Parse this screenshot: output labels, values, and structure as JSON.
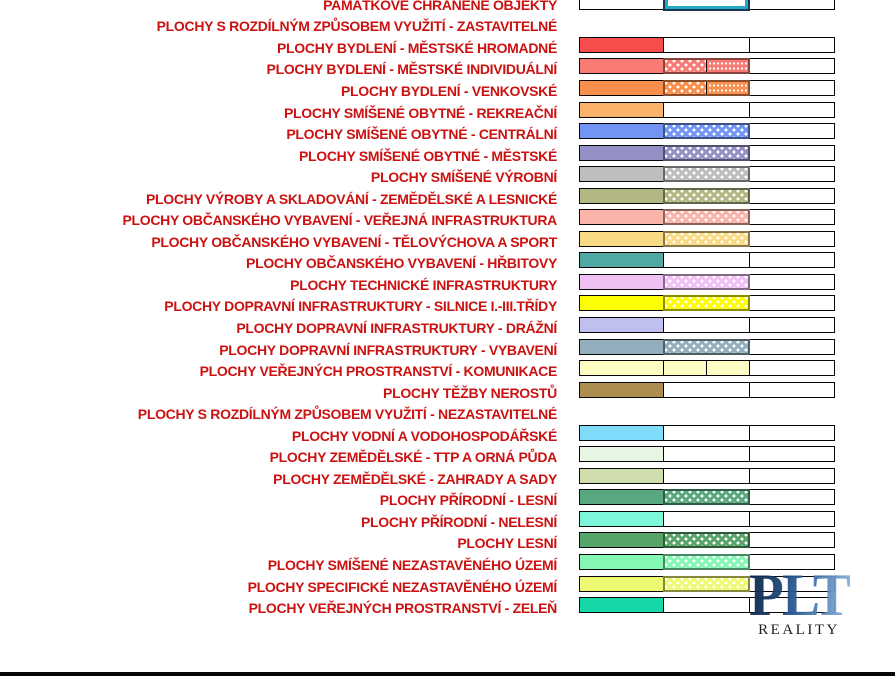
{
  "colors": {
    "label_red": "#cc1111",
    "cell_border": "#060606",
    "protected_outline_outer": "#17384e",
    "protected_outline_inner": "#20aac8"
  },
  "watermark": {
    "line1": "PLT",
    "line2": "REALITY"
  },
  "legend": {
    "rows": [
      {
        "label": "PAMÁTKOVĚ CHRÁNĚNÉ OBJEKTY",
        "type": "special"
      },
      {
        "label": "PLOCHY S ROZDÍLNÝM ZPŮSOBEM VYUŽITÍ - ZASTAVITELNÉ",
        "type": "header"
      },
      {
        "label": "PLOCHY BYDLENÍ - MĚSTSKÉ HROMADNÉ",
        "color": "#f94d4d",
        "col2": "plain"
      },
      {
        "label": "PLOCHY BYDLENÍ - MĚSTSKÉ INDIVIDUÁLNÍ",
        "color": "#f97c74",
        "col2": "split"
      },
      {
        "label": "PLOCHY BYDLENÍ - VENKOVSKÉ",
        "color": "#fa8f4d",
        "col2": "split"
      },
      {
        "label": "PLOCHY SMÍŠENÉ OBYTNÉ - REKREAČNÍ",
        "color": "#fbb26b",
        "col2": "plain"
      },
      {
        "label": "PLOCHY SMÍŠENÉ OBYTNÉ - CENTRÁLNÍ",
        "color": "#7295f5",
        "col2": "dots"
      },
      {
        "label": "PLOCHY SMÍŠENÉ OBYTNÉ - MĚSTSKÉ",
        "color": "#9490c5",
        "col2": "dots"
      },
      {
        "label": "PLOCHY SMÍŠENÉ VÝROBNÍ",
        "color": "#bebebe",
        "col2": "dots"
      },
      {
        "label": "PLOCHY VÝROBY A SKLADOVÁNÍ - ZEMĚDĚLSKÉ A LESNICKÉ",
        "color": "#b3b883",
        "col2": "dots"
      },
      {
        "label": "PLOCHY OBČANSKÉHO VYBAVENÍ - VEŘEJNÁ INFRASTRUKTURA",
        "color": "#fbb4a9",
        "col2": "dots"
      },
      {
        "label": "PLOCHY OBČANSKÉHO VYBAVENÍ - TĚLOVÝCHOVA A SPORT",
        "color": "#fada82",
        "col2": "dots"
      },
      {
        "label": "PLOCHY OBČANSKÉHO VYBAVENÍ - HŘBITOVY",
        "color": "#4fa8a2",
        "col2": "plain"
      },
      {
        "label": "PLOCHY TECHNICKÉ INFRASTRUKTURY",
        "color": "#f0c0f5",
        "col2": "dots"
      },
      {
        "label": "PLOCHY DOPRAVNÍ INFRASTRUKTURY - SILNICE I.-III.TŘÍDY",
        "color": "#fdfd04",
        "col2": "dots"
      },
      {
        "label": "PLOCHY DOPRAVNÍ INFRASTRUKTURY - DRÁŽNÍ",
        "color": "#c0c0f0",
        "col2": "plain"
      },
      {
        "label": "PLOCHY DOPRAVNÍ INFRASTRUKTURY - VYBAVENÍ",
        "color": "#93aebc",
        "col2": "dots"
      },
      {
        "label": "PLOCHY VEŘEJNÝCH PROSTRANSTVÍ - KOMUNIKACE",
        "color": "#fdfdc4",
        "col2": "split-plain"
      },
      {
        "label": "PLOCHY TĚŽBY NEROSTŮ",
        "color": "#ad8d50",
        "col2": "plain"
      },
      {
        "label": "PLOCHY S ROZDÍLNÝM ZPŮSOBEM VYUŽITÍ - NEZASTAVITELNÉ",
        "type": "header"
      },
      {
        "label": "PLOCHY VODNÍ A VODOHOSPODÁŘSKÉ",
        "color": "#7edbfa",
        "col2": "plain"
      },
      {
        "label": "PLOCHY ZEMĚDĚLSKÉ - TTP A ORNÁ PŮDA",
        "color": "#e7f7e3",
        "col2": "plain"
      },
      {
        "label": "PLOCHY ZEMĚDĚLSKÉ - ZAHRADY A SADY",
        "color": "#cfddad",
        "col2": "plain"
      },
      {
        "label": "PLOCHY PŘÍRODNÍ - LESNÍ",
        "color": "#57a77f",
        "col2": "dots"
      },
      {
        "label": "PLOCHY PŘÍRODNÍ - NELESNÍ",
        "color": "#7cf7da",
        "col2": "plain"
      },
      {
        "label": "PLOCHY LESNÍ",
        "color": "#57a468",
        "col2": "dots"
      },
      {
        "label": "PLOCHY SMÍŠENÉ NEZASTAVĚNÉHO ÚZEMÍ",
        "color": "#85f7b5",
        "col2": "dots"
      },
      {
        "label": "PLOCHY SPECIFICKÉ NEZASTAVĚNÉHO ÚZEMÍ",
        "color": "#eef871",
        "col2": "dots"
      },
      {
        "label": "PLOCHY VEŘEJNÝCH PROSTRANSTVÍ - ZELEŇ",
        "color": "#16d7a7",
        "col2": "plain"
      }
    ]
  }
}
